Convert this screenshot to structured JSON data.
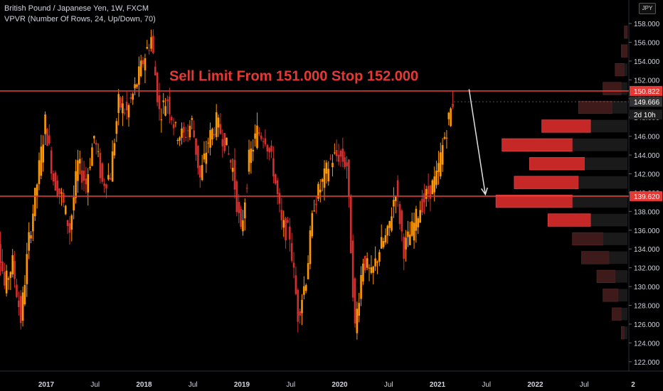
{
  "header": {
    "symbol_line": "British Pound / Japanese Yen, 1W, FXCM",
    "indicator_line": "VPVR (Number Of Rows, 24, Up/Down, 70)",
    "currency": "JPY"
  },
  "annotation": {
    "text": "Sell Limit From 151.000 Stop 152.000",
    "color": "#e53935"
  },
  "colors": {
    "background": "#000000",
    "candle_up": "#ff9800",
    "candle_down": "#d32f2f",
    "level_line": "#e53935",
    "axis_text": "#d1d4dc",
    "vp_bright": "#c62828",
    "vp_dark": "#3e1a1a"
  },
  "chart_data": {
    "type": "candlestick",
    "symbol": "GBPJPY",
    "timeframe": "1W",
    "x_ticks": [
      "2017",
      "Jul",
      "2018",
      "Jul",
      "2019",
      "Jul",
      "2020",
      "Jul",
      "2021",
      "Jul",
      "2022",
      "Jul",
      "2"
    ],
    "y_ticks": [
      122,
      124,
      126,
      128,
      130,
      132,
      134,
      136,
      138,
      140,
      142,
      144,
      146,
      148,
      150,
      152,
      154,
      156,
      158
    ],
    "ylim": [
      121,
      160.5
    ],
    "price_tags": [
      {
        "label": "150.822",
        "value": 150.822,
        "style": "level"
      },
      {
        "label": "149.666",
        "value": 149.666,
        "style": "last"
      },
      {
        "label": "2d 10h",
        "value": 148.3,
        "style": "countdown"
      },
      {
        "label": "139.620",
        "value": 139.62,
        "style": "level"
      }
    ],
    "horizontal_levels": [
      150.822,
      139.62
    ],
    "projection_arrow": {
      "from": [
        "2021-04",
        151.0
      ],
      "to": [
        "2021-06",
        139.8
      ]
    },
    "price_path": [
      [
        "2016-06",
        150.0
      ],
      [
        "2016-07",
        137.0
      ],
      [
        "2016-08",
        130.0
      ],
      [
        "2016-09",
        132.5
      ],
      [
        "2016-10",
        126.5
      ],
      [
        "2016-11",
        135.0
      ],
      [
        "2016-12",
        141.0
      ],
      [
        "2017-01",
        147.5
      ],
      [
        "2017-02",
        141.5
      ],
      [
        "2017-03",
        139.5
      ],
      [
        "2017-04",
        136.0
      ],
      [
        "2017-05",
        143.0
      ],
      [
        "2017-06",
        141.0
      ],
      [
        "2017-07",
        146.0
      ],
      [
        "2017-08",
        141.0
      ],
      [
        "2017-09",
        142.0
      ],
      [
        "2017-10",
        149.5
      ],
      [
        "2017-11",
        148.5
      ],
      [
        "2017-12",
        151.0
      ],
      [
        "2018-01",
        154.0
      ],
      [
        "2018-02",
        156.5
      ],
      [
        "2018-03",
        148.5
      ],
      [
        "2018-04",
        150.0
      ],
      [
        "2018-05",
        146.5
      ],
      [
        "2018-06",
        146.0
      ],
      [
        "2018-07",
        147.5
      ],
      [
        "2018-08",
        141.5
      ],
      [
        "2018-09",
        145.5
      ],
      [
        "2018-10",
        147.5
      ],
      [
        "2018-11",
        145.5
      ],
      [
        "2018-12",
        142.5
      ],
      [
        "2019-01",
        135.5
      ],
      [
        "2019-02",
        143.5
      ],
      [
        "2019-03",
        146.5
      ],
      [
        "2019-04",
        146.0
      ],
      [
        "2019-05",
        142.5
      ],
      [
        "2019-06",
        136.5
      ],
      [
        "2019-07",
        135.5
      ],
      [
        "2019-08",
        127.0
      ],
      [
        "2019-09",
        131.0
      ],
      [
        "2019-10",
        139.0
      ],
      [
        "2019-11",
        141.0
      ],
      [
        "2019-12",
        143.5
      ],
      [
        "2020-01",
        144.0
      ],
      [
        "2020-02",
        143.0
      ],
      [
        "2020-03",
        125.5
      ],
      [
        "2020-04",
        133.0
      ],
      [
        "2020-05",
        131.0
      ],
      [
        "2020-06",
        134.0
      ],
      [
        "2020-07",
        135.5
      ],
      [
        "2020-08",
        140.5
      ],
      [
        "2020-09",
        134.0
      ],
      [
        "2020-10",
        136.0
      ],
      [
        "2020-11",
        138.5
      ],
      [
        "2020-12",
        140.0
      ],
      [
        "2021-01",
        141.5
      ],
      [
        "2021-02",
        146.0
      ],
      [
        "2021-03",
        149.666
      ]
    ],
    "volume_profile": [
      {
        "price": 157,
        "buy": 1,
        "sell": 0
      },
      {
        "price": 155,
        "buy": 2,
        "sell": 0
      },
      {
        "price": 153,
        "buy": 3,
        "sell": 1
      },
      {
        "price": 151,
        "buy": 6,
        "sell": 2
      },
      {
        "price": 149,
        "buy": 11,
        "sell": 5
      },
      {
        "price": 147,
        "buy": 16,
        "sell": 12
      },
      {
        "price": 145,
        "buy": 23,
        "sell": 18
      },
      {
        "price": 143,
        "buy": 18,
        "sell": 14
      },
      {
        "price": 141,
        "buy": 21,
        "sell": 16
      },
      {
        "price": 139,
        "buy": 25,
        "sell": 18
      },
      {
        "price": 137,
        "buy": 14,
        "sell": 12
      },
      {
        "price": 135,
        "buy": 10,
        "sell": 8
      },
      {
        "price": 133,
        "buy": 9,
        "sell": 6
      },
      {
        "price": 131,
        "buy": 6,
        "sell": 4
      },
      {
        "price": 129,
        "buy": 5,
        "sell": 3
      },
      {
        "price": 127,
        "buy": 3,
        "sell": 2
      },
      {
        "price": 125,
        "buy": 1,
        "sell": 1
      }
    ]
  }
}
